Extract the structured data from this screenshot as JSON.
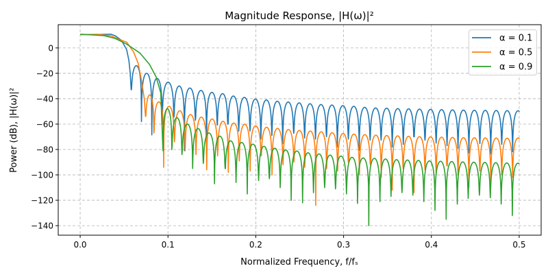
{
  "chart_data": {
    "type": "line",
    "title": "Magnitude Response, |H(ω)|²",
    "xlabel": "Normalized Frequency, f/fₛ",
    "ylabel": "Power (dB), |H(ω)|²",
    "xlim": [
      -0.025,
      0.525
    ],
    "ylim": [
      -147.5,
      18.3
    ],
    "xticks": [
      0.0,
      0.1,
      0.2,
      0.3,
      0.4,
      0.5
    ],
    "xtick_labels": [
      "0.0",
      "0.1",
      "0.2",
      "0.3",
      "0.4",
      "0.5"
    ],
    "yticks": [
      0,
      -20,
      -40,
      -60,
      -80,
      -100,
      -120,
      -140
    ],
    "ytick_labels": [
      "0",
      "−20",
      "−40",
      "−60",
      "−80",
      "−100",
      "−120",
      "−140"
    ],
    "grid": true,
    "legend_position": "top-right",
    "series": [
      {
        "name": "α = 0.1",
        "color": "#1f77b4",
        "passband": [
          [
            0,
            10.5
          ],
          [
            0.02,
            10.6
          ],
          [
            0.035,
            10.8
          ],
          [
            0.04,
            9.5
          ],
          [
            0.047,
            6
          ],
          [
            0.053,
            -1.5
          ],
          [
            0.0555,
            -10
          ],
          [
            0.057,
            -20
          ]
        ],
        "nulls_x": [
          0.0581,
          0.0698,
          0.0816,
          0.0935,
          0.1068,
          0.1187,
          0.1312,
          0.1439,
          0.1561,
          0.1682,
          0.1806,
          0.1934,
          0.2058,
          0.2183,
          0.2307,
          0.2432,
          0.2556,
          0.268,
          0.2805,
          0.2929,
          0.3054,
          0.3178,
          0.3302,
          0.3427,
          0.3554,
          0.368,
          0.3802,
          0.3927,
          0.4054,
          0.4178,
          0.4303,
          0.4427,
          0.4552,
          0.4676,
          0.4801,
          0.4925
        ],
        "nulls_db": [
          -33,
          -58,
          -68.5,
          -60,
          -54.5,
          -81,
          -57,
          -84,
          -60.7,
          -60,
          -65.5,
          -65.5,
          -71.8,
          -69,
          -75.4,
          -67.3,
          -70.9,
          -71.8,
          -70,
          -78,
          -71.8,
          -80.8,
          -72.7,
          -72.7,
          -78,
          -76,
          -70,
          -72.7,
          -75,
          -77,
          -79,
          -82.6,
          -75.4,
          -83.5,
          -76,
          -81.7
        ],
        "sidelobe_peaks_db": [
          -14,
          -20,
          -24,
          -27,
          -30,
          -31.6,
          -33.5,
          -35,
          -36,
          -37.9,
          -39,
          -40.3,
          -41,
          -42,
          -42.6,
          -43.3,
          -44,
          -44.6,
          -45,
          -45.5,
          -46,
          -46.8,
          -47.3,
          -47.5,
          -47.8,
          -48,
          -48.2,
          -48.4,
          -48.6,
          -48.8,
          -49,
          -49.1,
          -49.2,
          -49.3,
          -49.4
        ],
        "end_db": -49.5
      },
      {
        "name": "α = 0.5",
        "color": "#ff7f0e",
        "passband": [
          [
            0,
            10.5
          ],
          [
            0.02,
            10.7
          ],
          [
            0.035,
            9.5
          ],
          [
            0.045,
            6.5
          ],
          [
            0.053,
            4.5
          ],
          [
            0.0607,
            -3
          ],
          [
            0.066,
            -12
          ],
          [
            0.0697,
            -25
          ],
          [
            0.073,
            -40
          ]
        ],
        "nulls_x": [
          0.0744,
          0.084,
          0.0951,
          0.1073,
          0.1195,
          0.1319,
          0.1441,
          0.1565,
          0.1687,
          0.1812,
          0.1936,
          0.2061,
          0.2185,
          0.231,
          0.2434,
          0.2558,
          0.2683,
          0.2807,
          0.2932,
          0.3056,
          0.318,
          0.3305,
          0.3429,
          0.3554,
          0.3678,
          0.3802,
          0.3927,
          0.4054,
          0.4178,
          0.4303,
          0.4427,
          0.4552,
          0.4676,
          0.4801,
          0.4925
        ],
        "nulls_db": [
          -54,
          -67,
          -94,
          -74,
          -81,
          -84,
          -96,
          -85,
          -98,
          -89,
          -97,
          -85,
          -100,
          -92,
          -90,
          -94,
          -124,
          -95,
          -97,
          -90,
          -100,
          -92,
          -102,
          -112,
          -95,
          -114,
          -96,
          -100,
          -93,
          -100,
          -110,
          -97,
          -105,
          -100,
          -102
        ],
        "sidelobe_peaks_db": [
          -37,
          -42.5,
          -46,
          -49.5,
          -52.5,
          -54.5,
          -56,
          -57.8,
          -59.2,
          -60.1,
          -61.4,
          -62.5,
          -63.4,
          -64.3,
          -65,
          -65.5,
          -66.1,
          -66.8,
          -67.4,
          -67.9,
          -68.3,
          -68.7,
          -69,
          -69.3,
          -69.6,
          -69.9,
          -70.1,
          -70.3,
          -70.5,
          -70.7,
          -70.8,
          -70.9,
          -71,
          -71.1
        ],
        "end_db": -71
      },
      {
        "name": "α = 0.9",
        "color": "#2ca02c",
        "passband": [
          [
            0,
            10.8
          ],
          [
            0.027,
            9.7
          ],
          [
            0.0397,
            7.5
          ],
          [
            0.053,
            3
          ],
          [
            0.068,
            -4
          ],
          [
            0.079,
            -13
          ],
          [
            0.0866,
            -23
          ],
          [
            0.0918,
            -35.5
          ]
        ],
        "nulls_x": [
          0.0943,
          0.1044,
          0.1159,
          0.1281,
          0.1402,
          0.153,
          0.1651,
          0.1775,
          0.1903,
          0.2032,
          0.2154,
          0.2278,
          0.2403,
          0.2533,
          0.2657,
          0.2784,
          0.2908,
          0.3033,
          0.3159,
          0.3287,
          0.3414,
          0.354,
          0.3665,
          0.3789,
          0.3914,
          0.4041,
          0.4168,
          0.4295,
          0.4419,
          0.4547,
          0.4671,
          0.4795,
          0.4922
        ],
        "nulls_db": [
          -81,
          -80,
          -84,
          -95,
          -91,
          -107,
          -95,
          -106,
          -115,
          -104.5,
          -103,
          -110,
          -120,
          -122,
          -114,
          -110,
          -111,
          -115,
          -122.5,
          -140,
          -121,
          -117,
          -114,
          -116,
          -121,
          -128,
          -135,
          -123,
          -118.5,
          -116,
          -118,
          -123,
          -132
        ],
        "sidelobe_peaks_db": [
          -48,
          -55,
          -60,
          -63.5,
          -67,
          -69.5,
          -73.2,
          -74.5,
          -75.8,
          -77.5,
          -79,
          -80.4,
          -81.2,
          -82.6,
          -83.5,
          -84.4,
          -85.2,
          -86.2,
          -86.7,
          -87,
          -87.5,
          -88,
          -88.3,
          -88.6,
          -89,
          -89.3,
          -89.5,
          -89.8,
          -90,
          -90.2,
          -90.4,
          -90.6
        ],
        "end_db": -90.8
      }
    ]
  }
}
